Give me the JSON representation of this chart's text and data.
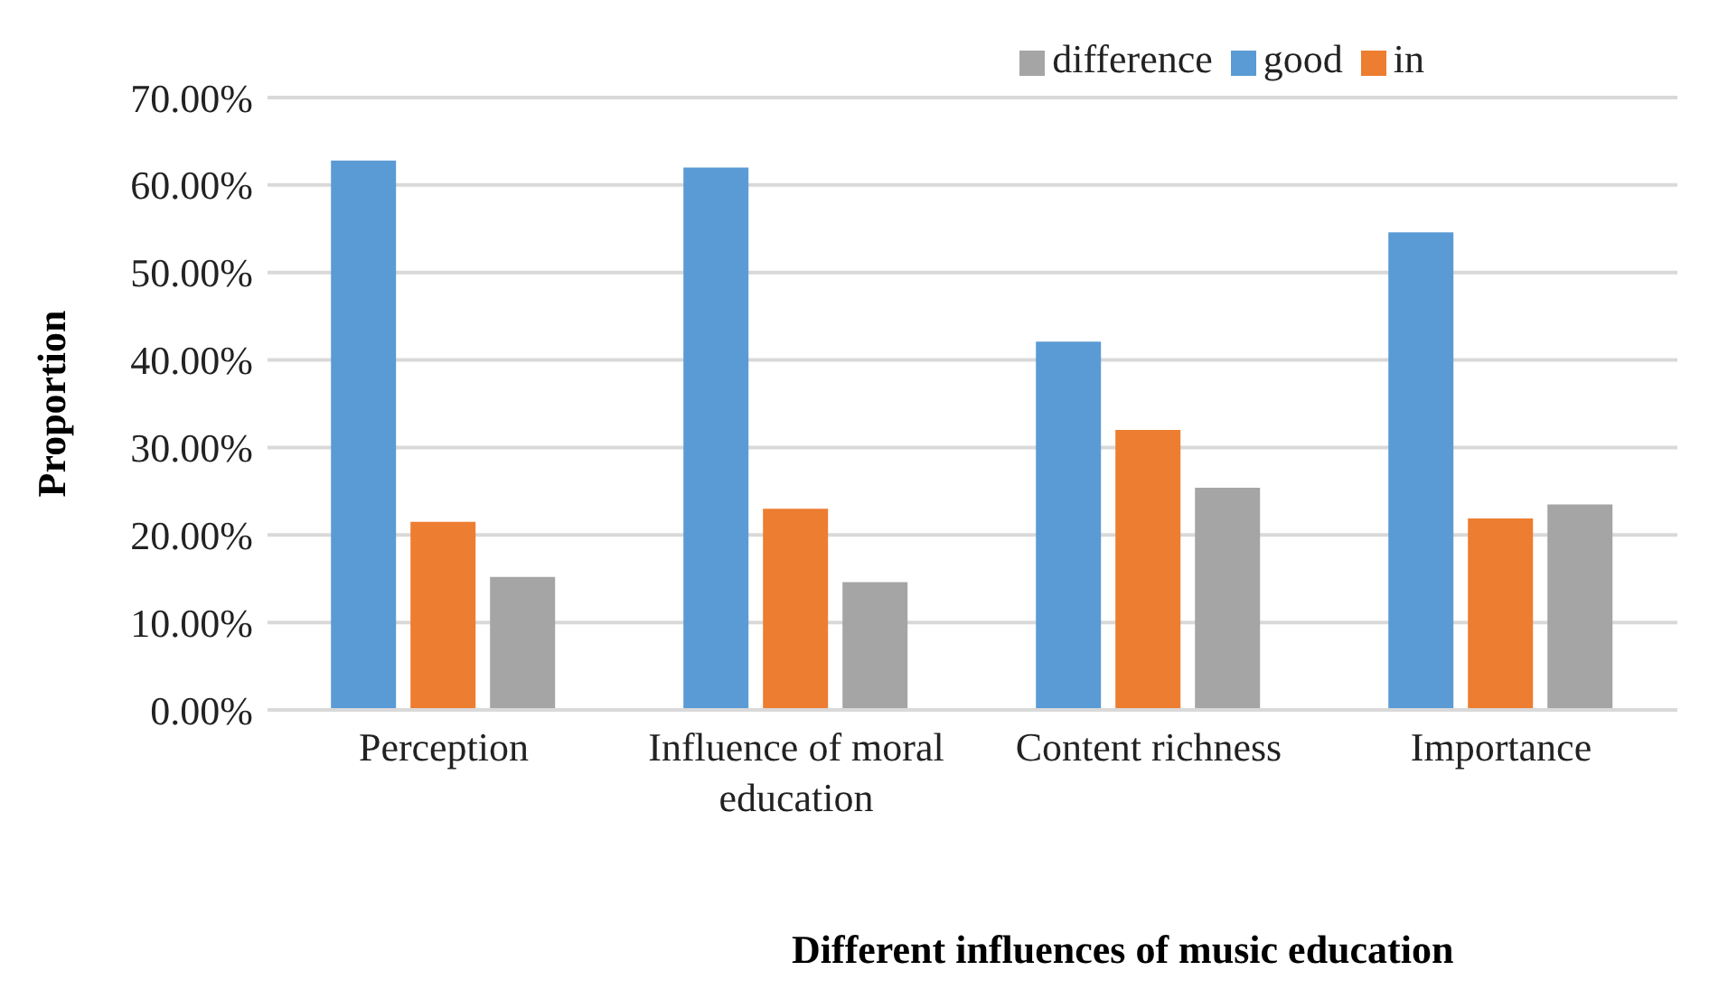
{
  "chart_data": {
    "type": "bar",
    "xlabel": "Different influences of music education",
    "ylabel": "Proportion",
    "categories": [
      "Perception",
      "Influence of moral education",
      "Content richness",
      "Importance"
    ],
    "series": [
      {
        "name": "good",
        "color": "#5b9bd5",
        "values": [
          62.8,
          62.0,
          42.1,
          54.6
        ]
      },
      {
        "name": "in",
        "color": "#ed7d31",
        "values": [
          21.5,
          23.0,
          32.0,
          21.9
        ]
      },
      {
        "name": "difference",
        "color": "#a5a5a5",
        "values": [
          15.2,
          14.6,
          25.4,
          23.5
        ]
      }
    ],
    "ylim": [
      0,
      70
    ],
    "yticks": [
      {
        "value": 0,
        "label": "0.00%"
      },
      {
        "value": 10,
        "label": "10.00%"
      },
      {
        "value": 20,
        "label": "20.00%"
      },
      {
        "value": 30,
        "label": "30.00%"
      },
      {
        "value": 40,
        "label": "40.00%"
      },
      {
        "value": 50,
        "label": "50.00%"
      },
      {
        "value": 60,
        "label": "60.00%"
      },
      {
        "value": 70,
        "label": "70.00%"
      }
    ],
    "grid": "y",
    "legend": "top right"
  }
}
